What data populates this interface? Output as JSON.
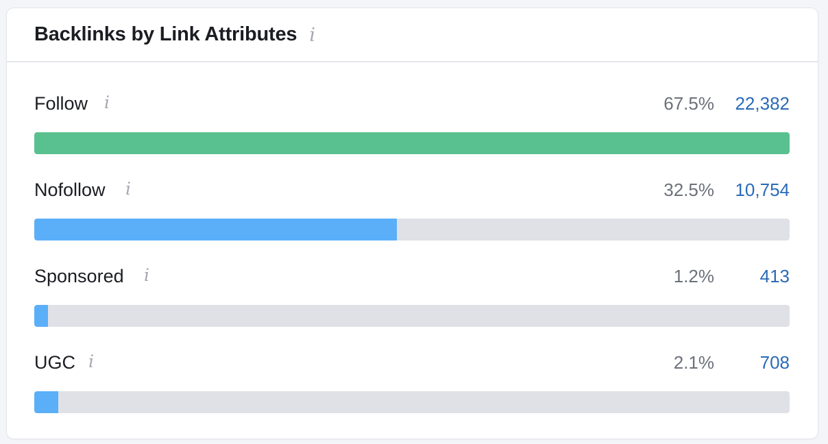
{
  "widget": {
    "title": "Backlinks by Link Attributes",
    "info_glyph": "i"
  },
  "rows": [
    {
      "label": "Follow",
      "percent": "67.5%",
      "count": "22,382",
      "fill_fraction": 1.0,
      "color": "#59c18f"
    },
    {
      "label": "Nofollow",
      "percent": "32.5%",
      "count": "10,754",
      "fill_fraction": 0.48,
      "color": "#5aaff8"
    },
    {
      "label": "Sponsored",
      "percent": "1.2%",
      "count": "413",
      "fill_fraction": 0.018,
      "color": "#5aaff8"
    },
    {
      "label": "UGC",
      "percent": "2.1%",
      "count": "708",
      "fill_fraction": 0.032,
      "color": "#5aaff8"
    }
  ],
  "colors": {
    "track": "#dfe1e6",
    "count_link": "#2a6ab8",
    "info_icon": "#a3a7b0"
  }
}
